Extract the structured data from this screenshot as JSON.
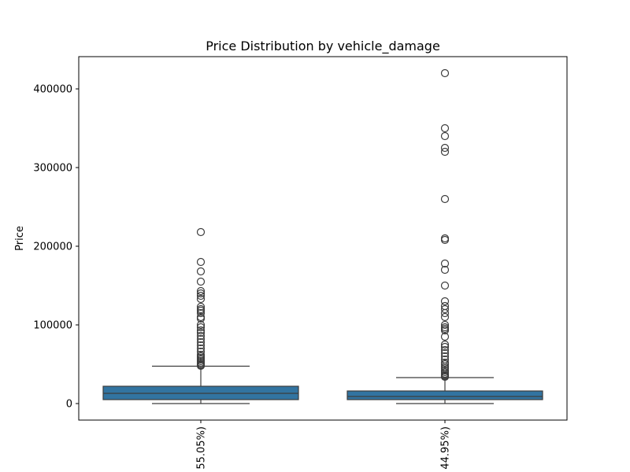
{
  "chart_data": {
    "type": "box",
    "title": "Price Distribution by vehicle_damage",
    "xlabel": "",
    "ylabel": "Price",
    "ylim": [
      -21000,
      441000
    ],
    "yticks": [
      0,
      100000,
      200000,
      300000,
      400000
    ],
    "ytick_labels": [
      "0",
      "100000",
      "200000",
      "300000",
      "400000"
    ],
    "grid": false,
    "legend": "none",
    "colors": {
      "box_fill": "#3274a1",
      "line": "#3d3d3d"
    },
    "categories": [
      "55.05%)",
      "44.95%)"
    ],
    "boxes": [
      {
        "category": "55.05%)",
        "whisker_low": 0,
        "q1": 5000,
        "median": 13000,
        "q3": 22000,
        "whisker_high": 47500,
        "outliers": [
          218000,
          180000,
          168000,
          155000,
          143000,
          140000,
          137000,
          133000,
          123000,
          120000,
          118000,
          115000,
          110000,
          108000,
          100000,
          97000,
          93000,
          90000,
          86000,
          82000,
          78000,
          74000,
          70000,
          66000,
          62000,
          60000,
          58000,
          56000,
          54000,
          52000,
          50000,
          49000,
          48000
        ]
      },
      {
        "category": "44.95%)",
        "whisker_low": 0,
        "q1": 5000,
        "median": 9000,
        "q3": 16000,
        "whisker_high": 33000,
        "outliers": [
          420000,
          350000,
          340000,
          325000,
          320000,
          260000,
          210000,
          208000,
          178000,
          170000,
          150000,
          130000,
          124000,
          120000,
          115000,
          110000,
          100000,
          97000,
          95000,
          93000,
          85000,
          75000,
          72000,
          68000,
          64000,
          60000,
          56000,
          52000,
          50000,
          47000,
          45000,
          42000,
          40000,
          38000,
          36000,
          35000,
          34000
        ]
      }
    ]
  }
}
